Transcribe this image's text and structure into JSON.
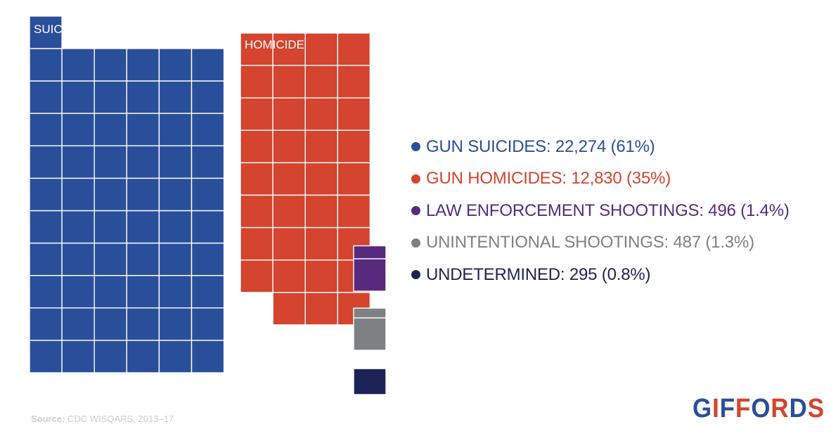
{
  "chart_data": {
    "type": "waffle",
    "unit_label": "",
    "series": [
      {
        "key": "suicide",
        "legend": "GUN SUICIDES: 22,274 (61%)",
        "value": 22274,
        "percent": 61,
        "squares": 61,
        "color": "#2a4f9a",
        "area_label": "SUICIDE"
      },
      {
        "key": "homicide",
        "legend": "GUN HOMICIDES: 12,830 (35%)",
        "value": 12830,
        "percent": 35,
        "squares": 35,
        "color": "#d4442e",
        "area_label": "HOMICIDE"
      },
      {
        "key": "law",
        "legend": "LAW ENFORCEMENT SHOOTINGS: 496 (1.4%)",
        "value": 496,
        "percent": 1.4,
        "squares": 1.4,
        "color": "#572a7d",
        "area_label": ""
      },
      {
        "key": "unintentional",
        "legend": "UNINTENTIONAL SHOOTINGS: 487 (1.3%)",
        "value": 487,
        "percent": 1.3,
        "squares": 1.3,
        "color": "#7d8184",
        "area_label": ""
      },
      {
        "key": "undetermined",
        "legend": "UNDETERMINED: 295 (0.8%)",
        "value": 295,
        "percent": 0.8,
        "squares": 0.8,
        "color": "#1b2356",
        "area_label": ""
      }
    ]
  },
  "source": {
    "label": "Source:",
    "text": "CDC WISQARS, 2013–17"
  },
  "brand": {
    "text": "GIFFORDS",
    "colors": [
      "#d4442e",
      "#2a4f9a"
    ]
  }
}
